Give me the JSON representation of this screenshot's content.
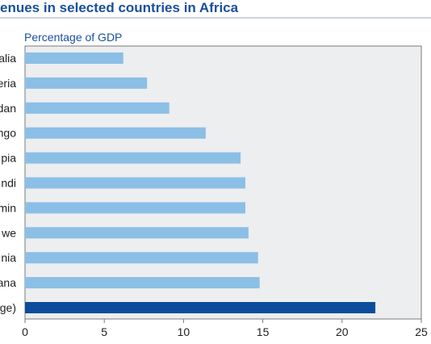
{
  "chart_data": {
    "type": "bar",
    "orientation": "horizontal",
    "title": "enues in selected countries in Africa",
    "subtitle": "Percentage of GDP",
    "categories": [
      "alia",
      "eria",
      "dan",
      "ngo",
      "pia",
      "ndi",
      "min",
      "we",
      "nia",
      "ana",
      "ge)"
    ],
    "values": [
      6.2,
      7.7,
      9.1,
      11.4,
      13.6,
      13.9,
      13.9,
      14.1,
      14.7,
      14.8,
      22.1
    ],
    "highlight_index": 10,
    "xlim": [
      0,
      25
    ],
    "xticks": [
      "0",
      "5",
      "10",
      "15",
      "20",
      "25"
    ],
    "grid": false,
    "colors": {
      "bar": "#8cbfe6",
      "highlight": "#0c4d9b",
      "title": "#1a4f9c",
      "plot_background": "#eceef0"
    }
  }
}
